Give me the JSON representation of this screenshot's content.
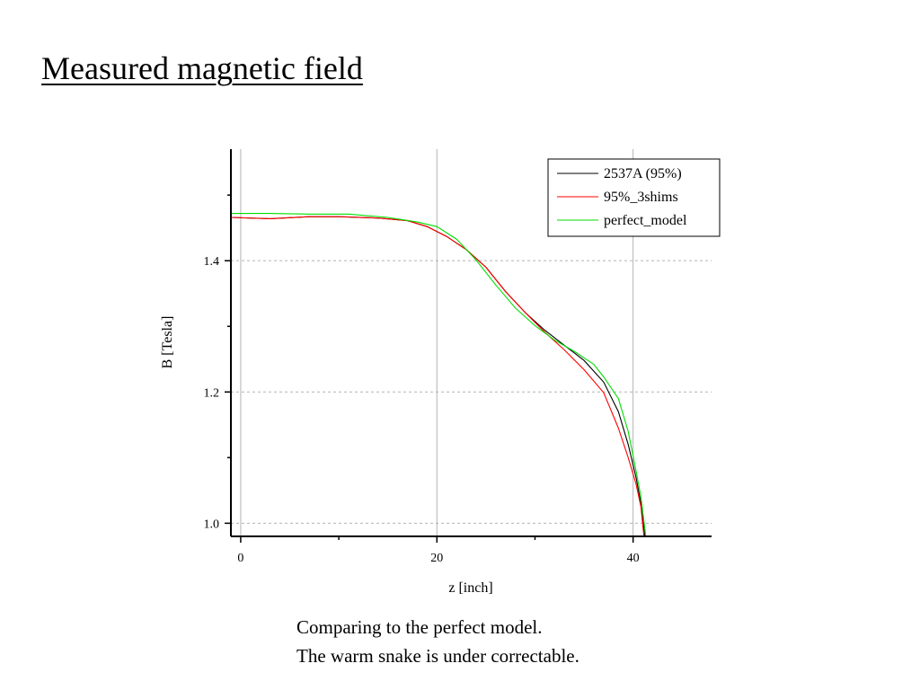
{
  "slide": {
    "title": "Measured magnetic field",
    "caption": [
      "Comparing to the perfect model.",
      "The warm snake is under correctable."
    ]
  },
  "chart_data": {
    "type": "line",
    "title": "",
    "xlabel": "z [inch]",
    "ylabel": "B [Tesla]",
    "xlim": [
      -1,
      48
    ],
    "ylim": [
      0.98,
      1.57
    ],
    "xticks": [
      0,
      20,
      40
    ],
    "xtick_labels": [
      "0",
      "20",
      "40"
    ],
    "yticks": [
      1.0,
      1.2,
      1.4
    ],
    "ytick_labels": [
      "1.0",
      "1.2",
      "1.4"
    ],
    "x_minor_ticks": [
      10,
      30
    ],
    "y_minor_ticks": [
      1.1,
      1.3,
      1.5
    ],
    "grid": {
      "x": "solid",
      "y": "dashed"
    },
    "legend_position": "top-right",
    "series": [
      {
        "name": "2537A (95%)",
        "color": "#000000",
        "points": [
          [
            -1,
            1.466
          ],
          [
            3,
            1.464
          ],
          [
            7,
            1.467
          ],
          [
            10,
            1.467
          ],
          [
            14,
            1.465
          ],
          [
            17,
            1.461
          ],
          [
            19,
            1.452
          ],
          [
            21,
            1.437
          ],
          [
            23,
            1.417
          ],
          [
            25,
            1.39
          ],
          [
            27,
            1.353
          ],
          [
            29,
            1.321
          ],
          [
            31,
            1.294
          ],
          [
            33,
            1.271
          ],
          [
            35,
            1.248
          ],
          [
            37,
            1.215
          ],
          [
            38.5,
            1.17
          ],
          [
            39.5,
            1.12
          ],
          [
            40.3,
            1.07
          ],
          [
            40.8,
            1.03
          ],
          [
            41.2,
            0.98
          ]
        ]
      },
      {
        "name": "95%_3shims",
        "color": "#ff0000",
        "points": [
          [
            -1,
            1.466
          ],
          [
            3,
            1.464
          ],
          [
            7,
            1.467
          ],
          [
            10,
            1.467
          ],
          [
            14,
            1.465
          ],
          [
            17,
            1.461
          ],
          [
            19,
            1.452
          ],
          [
            21,
            1.437
          ],
          [
            23,
            1.417
          ],
          [
            25,
            1.39
          ],
          [
            27,
            1.353
          ],
          [
            29,
            1.321
          ],
          [
            31,
            1.291
          ],
          [
            33,
            1.264
          ],
          [
            35,
            1.234
          ],
          [
            37,
            1.199
          ],
          [
            38.5,
            1.145
          ],
          [
            39.5,
            1.1
          ],
          [
            40.3,
            1.06
          ],
          [
            40.8,
            1.025
          ],
          [
            41.1,
            0.98
          ]
        ]
      },
      {
        "name": "perfect_model",
        "color": "#00dd00",
        "points": [
          [
            -1,
            1.472
          ],
          [
            3,
            1.472
          ],
          [
            7,
            1.471
          ],
          [
            11,
            1.471
          ],
          [
            15,
            1.466
          ],
          [
            18,
            1.459
          ],
          [
            20,
            1.452
          ],
          [
            22,
            1.433
          ],
          [
            24,
            1.401
          ],
          [
            26,
            1.363
          ],
          [
            28,
            1.328
          ],
          [
            30,
            1.301
          ],
          [
            32,
            1.279
          ],
          [
            34,
            1.262
          ],
          [
            36,
            1.242
          ],
          [
            37,
            1.223
          ],
          [
            38.5,
            1.19
          ],
          [
            39.5,
            1.14
          ],
          [
            40.3,
            1.08
          ],
          [
            40.8,
            1.04
          ],
          [
            41.3,
            0.98
          ]
        ]
      }
    ]
  }
}
